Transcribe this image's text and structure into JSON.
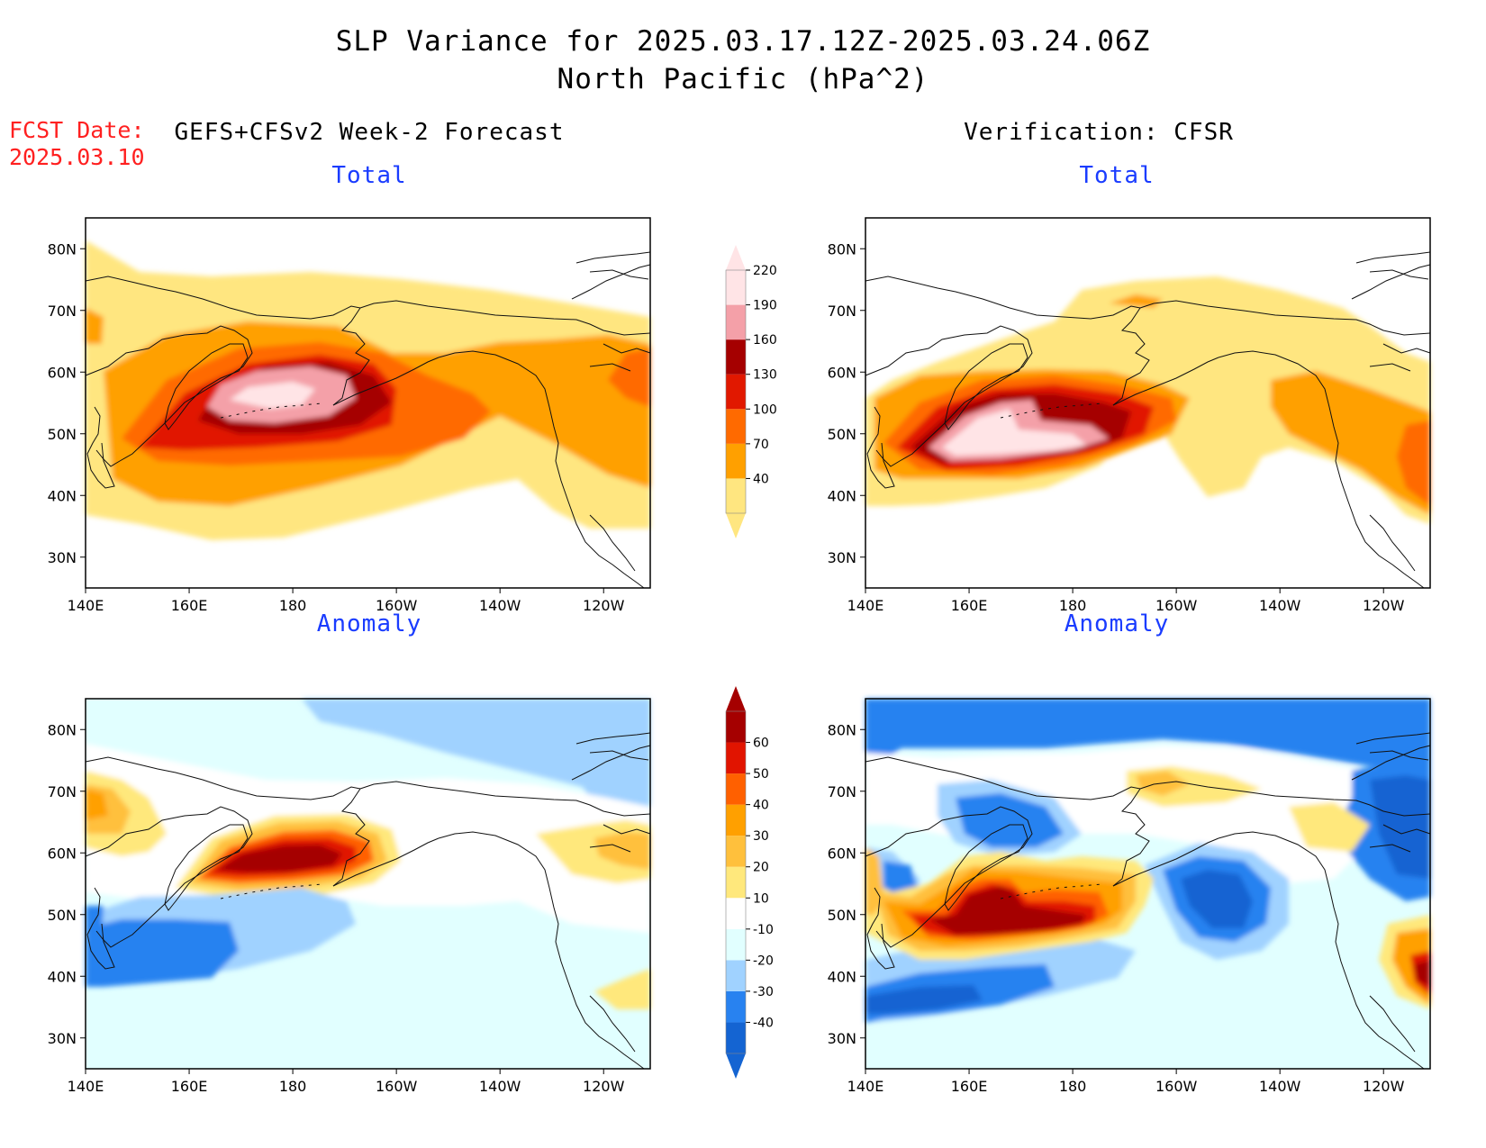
{
  "title": {
    "line1": "SLP Variance for 2025.03.17.12Z-2025.03.24.06Z",
    "line2": "North Pacific (hPa^2)"
  },
  "fcst": {
    "label": "FCST Date:",
    "date": "2025.03.10"
  },
  "columns": {
    "left": "GEFS+CFSv2 Week-2 Forecast",
    "right": "Verification: CFSR"
  },
  "panels": {
    "forecast_total": "Total",
    "verification_total": "Total",
    "forecast_anomaly": "Anomaly",
    "verification_anomaly": "Anomaly"
  },
  "axes": {
    "lat_labels": [
      "80N",
      "70N",
      "60N",
      "50N",
      "40N",
      "30N"
    ],
    "lat_values": [
      80,
      70,
      60,
      50,
      40,
      30
    ],
    "lon_labels": [
      "140E",
      "160E",
      "180",
      "160W",
      "140W",
      "120W"
    ],
    "lon_values": [
      140,
      160,
      180,
      200,
      220,
      240
    ],
    "lon_range": [
      140,
      249
    ],
    "lat_range": [
      25,
      85
    ]
  },
  "colorbars": {
    "total": {
      "levels": [
        "40",
        "70",
        "100",
        "130",
        "160",
        "190",
        "220"
      ],
      "colors": [
        "#ffe680",
        "#ffa000",
        "#ff6a00",
        "#e11800",
        "#a50000",
        "#f4a0a8",
        "#ffe4e6"
      ]
    },
    "anomaly": {
      "levels": [
        "-40",
        "-30",
        "-20",
        "-10",
        "10",
        "20",
        "30",
        "40",
        "50",
        "60"
      ],
      "colors": [
        "#1464d2",
        "#2882f0",
        "#a0d2ff",
        "#e1ffff",
        "#ffffff",
        "#ffe87c",
        "#ffc03c",
        "#ffa000",
        "#ff6000",
        "#e11400",
        "#a50000"
      ]
    }
  }
}
